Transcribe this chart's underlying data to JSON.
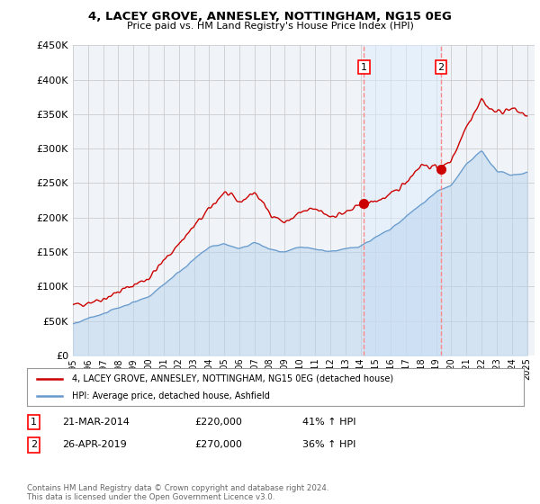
{
  "title": "4, LACEY GROVE, ANNESLEY, NOTTINGHAM, NG15 0EG",
  "subtitle": "Price paid vs. HM Land Registry's House Price Index (HPI)",
  "legend_line1": "4, LACEY GROVE, ANNESLEY, NOTTINGHAM, NG15 0EG (detached house)",
  "legend_line2": "HPI: Average price, detached house, Ashfield",
  "annotation1_label": "1",
  "annotation1_date": "21-MAR-2014",
  "annotation1_price": "£220,000",
  "annotation1_hpi": "41% ↑ HPI",
  "annotation2_label": "2",
  "annotation2_date": "26-APR-2019",
  "annotation2_price": "£270,000",
  "annotation2_hpi": "36% ↑ HPI",
  "footer": "Contains HM Land Registry data © Crown copyright and database right 2024.\nThis data is licensed under the Open Government Licence v3.0.",
  "ylim": [
    0,
    450000
  ],
  "yticks": [
    0,
    50000,
    100000,
    150000,
    200000,
    250000,
    300000,
    350000,
    400000,
    450000
  ],
  "red_color": "#cc0000",
  "blue_color": "#6699cc",
  "blue_fill_between": "#ddeeff",
  "vline_color": "#ff8888",
  "background_color": "#f0f4f8",
  "grid_color": "#cccccc",
  "purchase1_x": 2014.22,
  "purchase1_y": 220000,
  "purchase2_x": 2019.32,
  "purchase2_y": 270000,
  "xlim_left": 1995,
  "xlim_right": 2025.5
}
